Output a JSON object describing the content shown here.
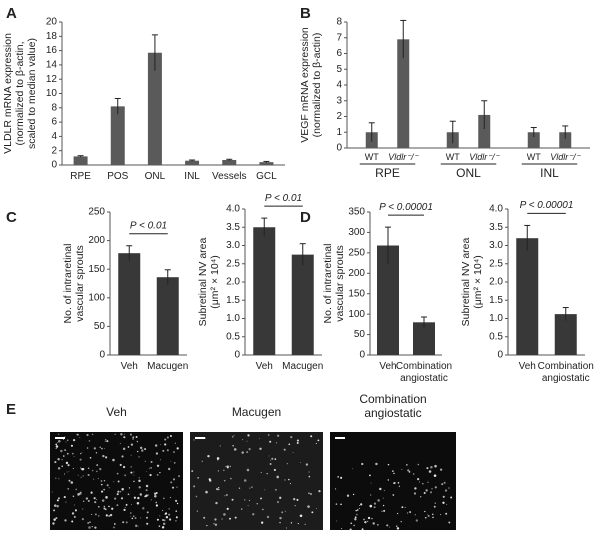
{
  "chart_data": [
    {
      "type": "bar",
      "panel": "A",
      "ylabel": [
        "VLDLR mRNA expression",
        "(normalized to β-actin,",
        "scaled to median value)"
      ],
      "categories": [
        "RPE",
        "POS",
        "ONL",
        "INL",
        "Vessels",
        "GCL"
      ],
      "values": [
        1.2,
        8.2,
        15.7,
        0.6,
        0.7,
        0.4
      ],
      "errors": [
        0.1,
        1.1,
        2.5,
        0.1,
        0.1,
        0.1
      ],
      "color": "#5a5a5a",
      "ylim": [
        0,
        20
      ],
      "yticks": [
        0,
        2,
        4,
        6,
        8,
        10,
        12,
        14,
        16,
        18,
        20
      ]
    },
    {
      "type": "bar",
      "panel": "B",
      "ylabel": [
        "VEGF mRNA expression",
        "(normalized to β-actin)"
      ],
      "categories": [
        "WT",
        "Vldlr⁻/⁻",
        "WT",
        "Vldlr⁻/⁻",
        "WT",
        "Vldlr⁻/⁻"
      ],
      "groups": [
        "RPE",
        "ONL",
        "INL"
      ],
      "values": [
        1.0,
        6.9,
        1.0,
        2.1,
        1.0,
        1.0
      ],
      "errors": [
        0.6,
        1.2,
        0.7,
        0.9,
        0.3,
        0.4
      ],
      "color": "#5a5a5a",
      "ylim": [
        0,
        8
      ],
      "yticks": [
        0,
        1,
        2,
        3,
        4,
        5,
        6,
        7,
        8
      ]
    },
    {
      "type": "bar",
      "panel": "C",
      "ylabel": [
        "No. of intraretinal",
        "vascular  sprouts"
      ],
      "annotation": "P < 0.01",
      "categories": [
        "Veh",
        "Macugen"
      ],
      "values": [
        178,
        136
      ],
      "errors": [
        13,
        13
      ],
      "color": "#383838",
      "ylim": [
        0,
        250
      ],
      "yticks": [
        0,
        50,
        100,
        150,
        200,
        250
      ]
    },
    {
      "type": "bar",
      "ylabel": [
        "Subretinal NV area",
        "(μm² × 10⁴)"
      ],
      "annotation": "P < 0.01",
      "categories": [
        "Veh",
        "Macugen"
      ],
      "values": [
        3.5,
        2.75
      ],
      "errors": [
        0.25,
        0.3
      ],
      "color": "#383838",
      "ylim": [
        0,
        4
      ],
      "yticks": [
        0,
        0.5,
        {
          "value": 1,
          "label": "1.0"
        },
        1.5,
        {
          "value": 2,
          "label": "2.0"
        },
        2.5,
        {
          "value": 3,
          "label": "3.0"
        },
        3.5,
        {
          "value": 4,
          "label": "4.0"
        }
      ]
    },
    {
      "type": "bar",
      "panel": "D",
      "ylabel": [
        "No. of intraretinal",
        "vascular  sprouts"
      ],
      "annotation": "P < 0.00001",
      "categories": [
        "Veh",
        "Combination angiostatic"
      ],
      "values": [
        268,
        80
      ],
      "errors": [
        45,
        13
      ],
      "color": "#383838",
      "ylim": [
        0,
        350
      ],
      "yticks": [
        0,
        50,
        100,
        150,
        200,
        250,
        300,
        350
      ]
    },
    {
      "type": "bar",
      "ylabel": [
        "Subretinal NV area",
        "(μm² × 10⁴)"
      ],
      "annotation": "P < 0.00001",
      "categories": [
        "Veh",
        "Combination angiostatic"
      ],
      "values": [
        3.2,
        1.12
      ],
      "errors": [
        0.35,
        0.18
      ],
      "color": "#383838",
      "ylim": [
        0,
        4
      ],
      "yticks": [
        0,
        0.5,
        {
          "value": 1,
          "label": "1.0"
        },
        1.5,
        {
          "value": 2,
          "label": "2.0"
        },
        2.5,
        {
          "value": 3,
          "label": "3.0"
        },
        3.5,
        {
          "value": 4,
          "label": "4.0"
        }
      ]
    }
  ],
  "panel_e": {
    "panel": "E",
    "images": [
      "Veh",
      "Macugen",
      "Combination angiostatic"
    ]
  }
}
